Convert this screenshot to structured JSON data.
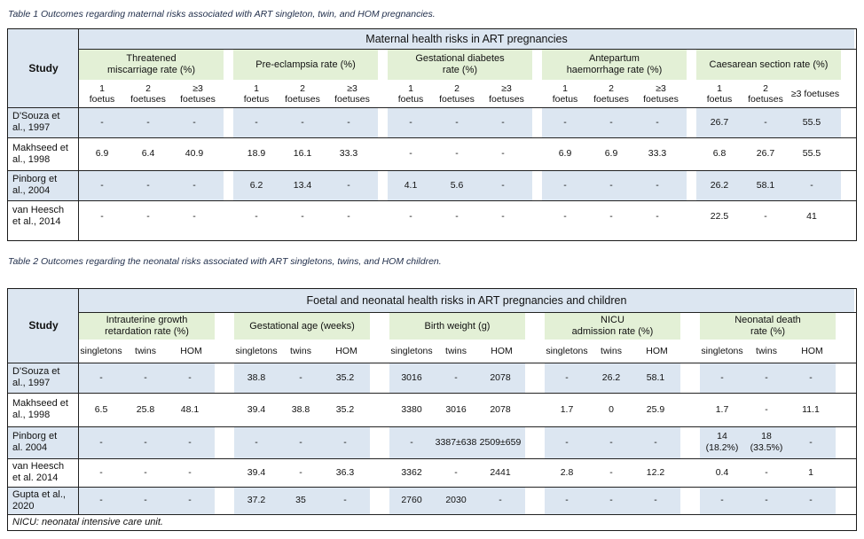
{
  "table1": {
    "caption": "Table 1 Outcomes regarding maternal risks associated with ART singleton, twin, and HOM pregnancies.",
    "study_header": "Study",
    "banner": "Maternal health risks in ART pregnancies",
    "groups": [
      {
        "title": "Threatened\nmiscarriage rate (%)",
        "subs": [
          "1\nfoetus",
          "2\nfoetuses",
          "≥3\nfoetuses"
        ]
      },
      {
        "title": "Pre-eclampsia rate (%)",
        "subs": [
          "1\nfoetus",
          "2\nfoetuses",
          "≥3\nfoetuses"
        ]
      },
      {
        "title": "Gestational diabetes\nrate (%)",
        "subs": [
          "1\nfoetus",
          "2\nfoetuses",
          "≥3\nfoetuses"
        ]
      },
      {
        "title": "Antepartum\nhaemorrhage rate (%)",
        "subs": [
          "1\nfoetus",
          "2\nfoetuses",
          "≥3\nfoetuses"
        ]
      },
      {
        "title": "Caesarean section rate (%)",
        "subs": [
          "1\nfoetus",
          "2\nfoetuses",
          "≥3 foetuses"
        ]
      }
    ],
    "rows": [
      {
        "study": "D'Souza et\nal., 1997",
        "values": [
          "-",
          "-",
          "-",
          "-",
          "-",
          "-",
          "-",
          "-",
          "-",
          "-",
          "-",
          "-",
          "26.7",
          "-",
          "55.5"
        ]
      },
      {
        "study": "Makhseed et\nal., 1998",
        "values": [
          "6.9",
          "6.4",
          "40.9",
          "18.9",
          "16.1",
          "33.3",
          "-",
          "-",
          "-",
          "6.9",
          "6.9",
          "33.3",
          "6.8",
          "26.7",
          "55.5"
        ]
      },
      {
        "study": "Pinborg et\nal., 2004",
        "values": [
          "-",
          "-",
          "-",
          "6.2",
          "13.4",
          "-",
          "4.1",
          "5.6",
          "-",
          "-",
          "-",
          "-",
          "26.2",
          "58.1",
          "-"
        ]
      },
      {
        "study": "van Heesch\net al., 2014",
        "values": [
          "-",
          "-",
          "-",
          "-",
          "-",
          "-",
          "-",
          "-",
          "-",
          "-",
          "-",
          "-",
          "22.5",
          "-",
          "41"
        ]
      }
    ]
  },
  "table2": {
    "caption": "Table 2 Outcomes regarding the neonatal risks associated with ART singletons, twins, and HOM children.",
    "study_header": "Study",
    "banner": "Foetal and neonatal health risks in ART pregnancies and children",
    "groups": [
      {
        "title": "Intrauterine growth\nretardation rate (%)",
        "subs": [
          "singletons",
          "twins",
          "HOM"
        ]
      },
      {
        "title": "Gestational age (weeks)",
        "subs": [
          "singletons",
          "twins",
          "HOM"
        ]
      },
      {
        "title": "Birth weight (g)",
        "subs": [
          "singletons",
          "twins",
          "HOM"
        ]
      },
      {
        "title": "NICU\nadmission rate (%)",
        "subs": [
          "singletons",
          "twins",
          "HOM"
        ]
      },
      {
        "title": "Neonatal death\nrate (%)",
        "subs": [
          "singletons",
          "twins",
          "HOM"
        ]
      }
    ],
    "rows": [
      {
        "study": "D'Souza et\nal., 1997",
        "values": [
          "-",
          "-",
          "-",
          "38.8",
          "-",
          "35.2",
          "3016",
          "-",
          "2078",
          "-",
          "26.2",
          "58.1",
          "-",
          "-",
          "-"
        ]
      },
      {
        "study": "Makhseed et\nal., 1998",
        "values": [
          "6.5",
          "25.8",
          "48.1",
          "39.4",
          "38.8",
          "35.2",
          "3380",
          "3016",
          "2078",
          "1.7",
          "0",
          "25.9",
          "1.7",
          "-",
          "11.1"
        ]
      },
      {
        "study": "Pinborg et\nal. 2004",
        "values": [
          "-",
          "-",
          "-",
          "-",
          "-",
          "-",
          "-",
          "3387±638",
          "2509±659",
          "-",
          "-",
          "-",
          "14\n(18.2%)",
          "18\n(33.5%)",
          "-"
        ]
      },
      {
        "study": "van Heesch\net al. 2014",
        "values": [
          "-",
          "-",
          "-",
          "39.4",
          "-",
          "36.3",
          "3362",
          "-",
          "2441",
          "2.8",
          "-",
          "12.2",
          "0.4",
          "-",
          "1"
        ]
      },
      {
        "study": "Gupta et al.,\n2020",
        "values": [
          "-",
          "-",
          "-",
          "37.2",
          "35",
          "-",
          "2760",
          "2030",
          "-",
          "-",
          "-",
          "-",
          "-",
          "-",
          "-"
        ]
      }
    ],
    "footnote": "NICU: neonatal intensive care unit."
  }
}
